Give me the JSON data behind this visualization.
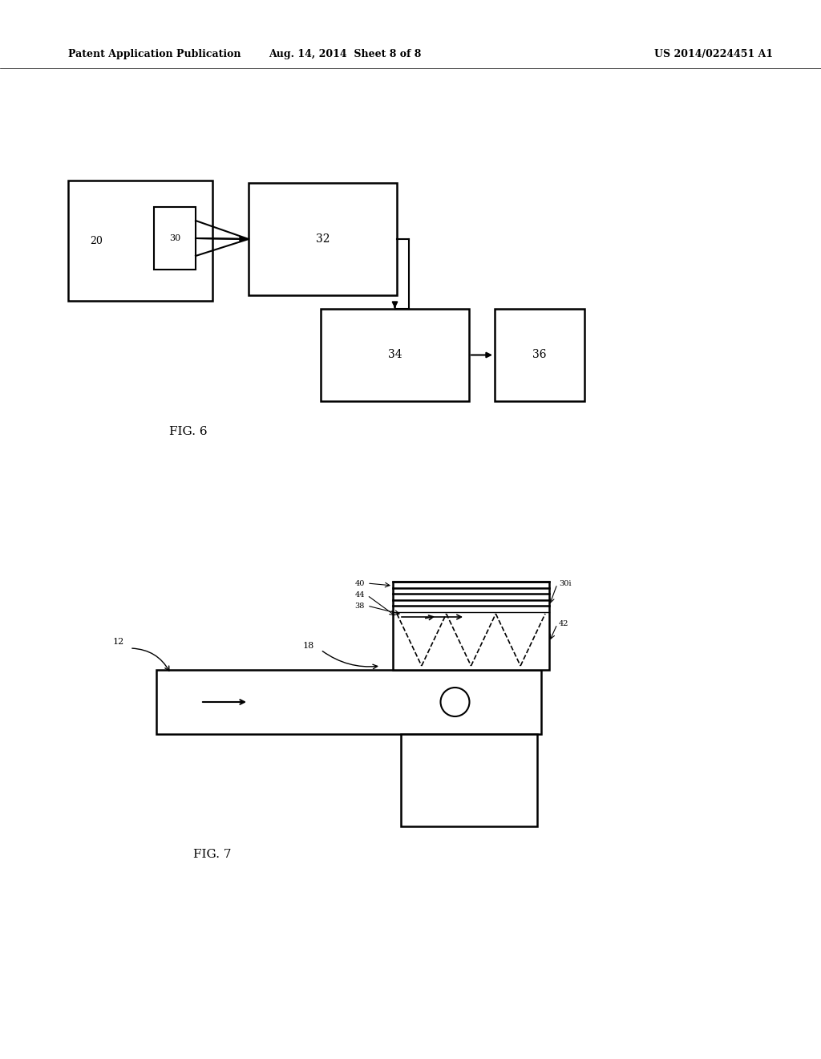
{
  "bg_color": "#ffffff",
  "header_left": "Patent Application Publication",
  "header_mid": "Aug. 14, 2014  Sheet 8 of 8",
  "header_right": "US 2014/0224451 A1",
  "fig6_label": "FIG. 6",
  "fig7_label": "FIG. 7",
  "label20": "20",
  "label30": "30",
  "label32": "32",
  "label34": "34",
  "label36": "36",
  "label12": "12",
  "label18": "18",
  "label30i": "30i",
  "label38": "38",
  "label40": "40",
  "label42": "42",
  "label44": "44"
}
